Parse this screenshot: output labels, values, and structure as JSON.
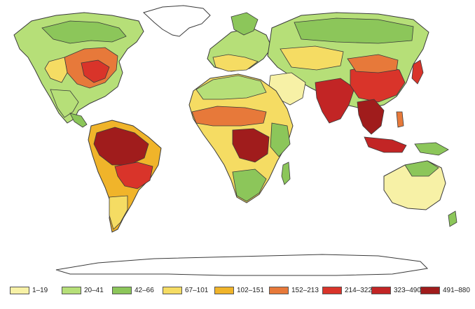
{
  "colors": {
    "ocean": "#ffffff",
    "outline": "#3a3a3a",
    "c1": "#f7f1a6",
    "c2": "#b6df78",
    "c3": "#8cc65a",
    "c4": "#f5dc63",
    "c5": "#f0b42a",
    "c6": "#e7793a",
    "c7": "#d9342a",
    "c8": "#c22525",
    "c9": "#a01c1c"
  },
  "legend": {
    "items": [
      {
        "label": "1–19",
        "color": "#f7f1a6"
      },
      {
        "label": "20–41",
        "color": "#b6df78"
      },
      {
        "label": "42–66",
        "color": "#8cc65a"
      },
      {
        "label": "67–101",
        "color": "#f5dc63"
      },
      {
        "label": "102–151",
        "color": "#f0b42a"
      },
      {
        "label": "152–213",
        "color": "#e7793a"
      },
      {
        "label": "214–322",
        "color": "#d9342a"
      },
      {
        "label": "323–490",
        "color": "#c22525"
      },
      {
        "label": "491–880",
        "color": "#a01c1c"
      }
    ]
  }
}
